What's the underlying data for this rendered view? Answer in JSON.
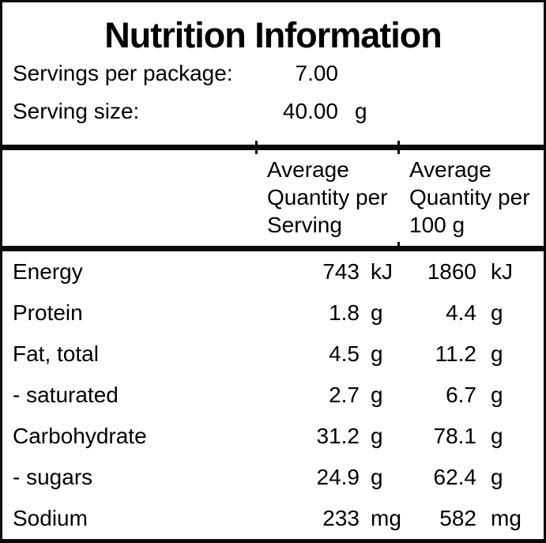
{
  "title": "Nutrition Information",
  "serving_info": [
    {
      "label": "Servings per package:",
      "value": "7.00",
      "unit": ""
    },
    {
      "label": "Serving size:",
      "value": "40.00",
      "unit": "g"
    }
  ],
  "column_headers": {
    "per_serving_lines": [
      "Average",
      "Quantity per",
      "Serving"
    ],
    "per_100g_lines": [
      "Average",
      "Quantity per",
      "100 g"
    ]
  },
  "nutrients": [
    {
      "name": "Energy",
      "per_serving": "743",
      "per_serving_unit": "kJ",
      "per_100g": "1860",
      "per_100g_unit": "kJ"
    },
    {
      "name": "Protein",
      "per_serving": "1.8",
      "per_serving_unit": "g",
      "per_100g": "4.4",
      "per_100g_unit": "g"
    },
    {
      "name": "Fat, total",
      "per_serving": "4.5",
      "per_serving_unit": "g",
      "per_100g": "11.2",
      "per_100g_unit": "g"
    },
    {
      "name": "- saturated",
      "per_serving": "2.7",
      "per_serving_unit": "g",
      "per_100g": "6.7",
      "per_100g_unit": "g"
    },
    {
      "name": "Carbohydrate",
      "per_serving": "31.2",
      "per_serving_unit": "g",
      "per_100g": "78.1",
      "per_100g_unit": "g"
    },
    {
      "name": "- sugars",
      "per_serving": "24.9",
      "per_serving_unit": "g",
      "per_100g": "62.4",
      "per_100g_unit": "g"
    },
    {
      "name": "Sodium",
      "per_serving": "233",
      "per_serving_unit": "mg",
      "per_100g": "582",
      "per_100g_unit": "mg"
    }
  ],
  "colors": {
    "border": "#0a0a0a",
    "text": "#000000",
    "background": "#ffffff"
  }
}
